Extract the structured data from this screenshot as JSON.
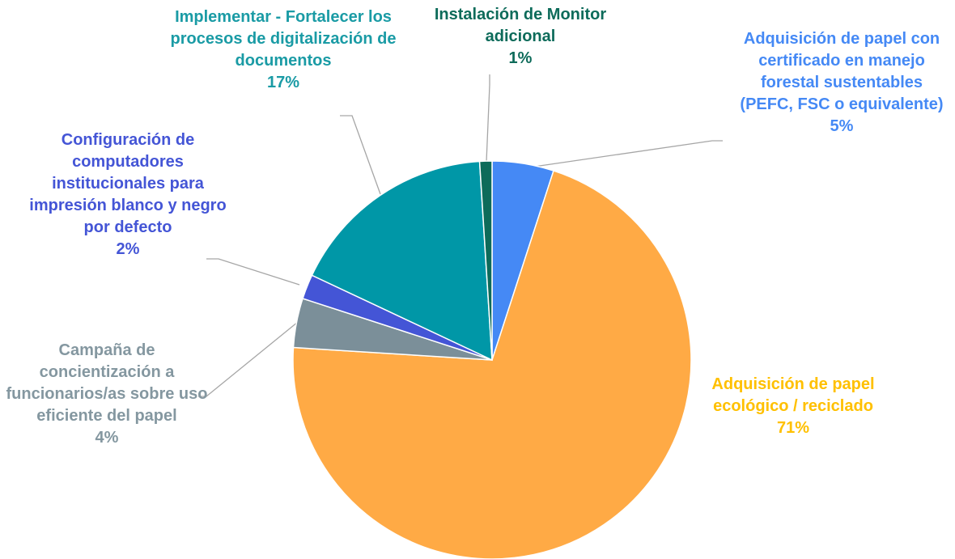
{
  "chart_data": {
    "type": "pie",
    "categories": [
      "Adquisición de papel con certificado en manejo forestal sustentables (PEFC, FSC o equivalente)",
      "Adquisición de papel ecológico / reciclado",
      "Campaña de concientización a funcionarios/as sobre uso eficiente del papel",
      "Configuración de computadores institucionales para impresión blanco y negro por defecto",
      "Implementar - Fortalecer los procesos de digitalización de documentos",
      "Instalación de Monitor adicional"
    ],
    "values": [
      5,
      71,
      4,
      2,
      17,
      1
    ],
    "value_labels": [
      "5%",
      "71%",
      "4%",
      "2%",
      "17%",
      "1%"
    ],
    "colors": [
      "#4589f5",
      "#ffaa45",
      "#7b8f99",
      "#4455d6",
      "#0097a7",
      "#0d6b5a"
    ],
    "label_colors": [
      "#4589f5",
      "#ffc000",
      "#8497a0",
      "#4455d6",
      "#1a9ba5",
      "#0d6b5a"
    ]
  }
}
